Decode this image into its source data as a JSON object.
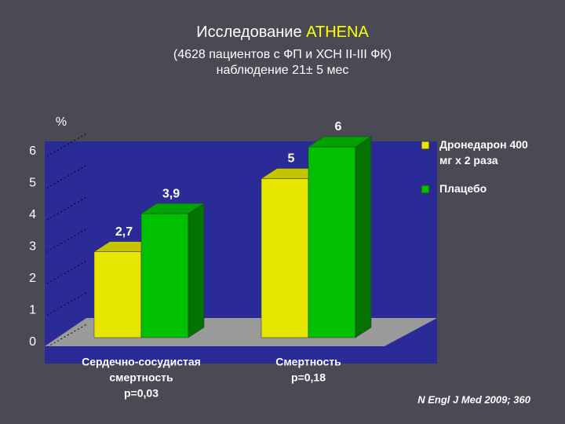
{
  "chart_data": {
    "type": "bar3d",
    "title": [
      "Исследование",
      "ATHENA"
    ],
    "subtitle": [
      "(4628 пациентов с ФП и ХСН II-III ФК)",
      "наблюдение 21± 5 мес"
    ],
    "y_axis_label": "%",
    "categories": [
      [
        "Сердечно-сосудистая",
        "смертность",
        "p=0,03"
      ],
      [
        "Смертность",
        "p=0,18"
      ]
    ],
    "series": [
      {
        "name": "Дронедарон 400 мг х 2 раза",
        "color": "#e6e600",
        "values": [
          2.7,
          5
        ],
        "value_labels": [
          "2,7",
          "5"
        ]
      },
      {
        "name": "Плацебо",
        "color": "#00c000",
        "values": [
          3.9,
          6
        ],
        "value_labels": [
          "3,9",
          "6"
        ]
      }
    ],
    "ylim": [
      0,
      6
    ],
    "yticks": [
      0,
      1,
      2,
      3,
      4,
      5,
      6
    ],
    "grid": true,
    "legend": "right",
    "source": "N Engl J Med 2009; 360"
  }
}
